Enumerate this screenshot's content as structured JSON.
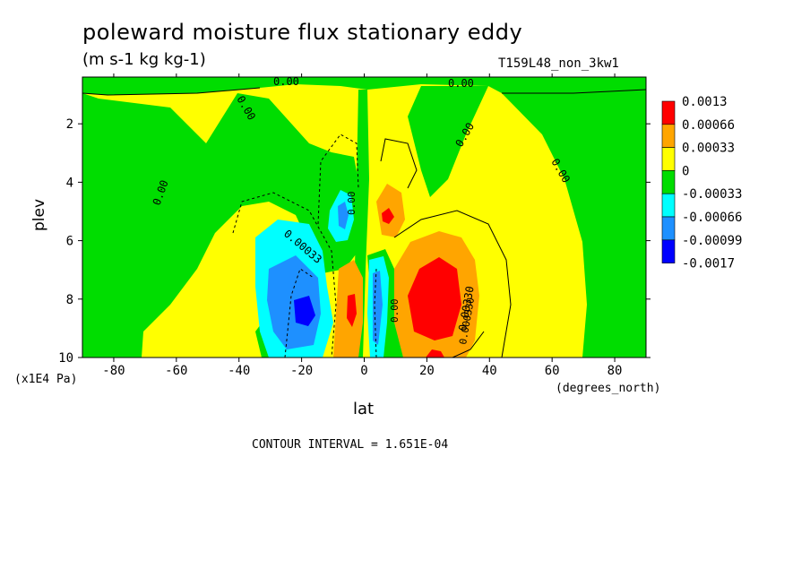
{
  "chart_data": {
    "type": "heatmap",
    "title": "poleward moisture flux stationary eddy",
    "subtitle": "(m s-1 kg kg-1)",
    "run_label": "T159L48_non_3kw1",
    "xlabel": "lat",
    "ylabel": "plev",
    "x_units": "(degrees_north)",
    "y_units": "(x1E4 Pa)",
    "xlim": [
      -90,
      90
    ],
    "ylim": [
      10,
      0.4
    ],
    "x_ticks": [
      -80,
      -60,
      -40,
      -20,
      0,
      20,
      40,
      60,
      80
    ],
    "y_ticks": [
      2,
      4,
      6,
      8,
      10
    ],
    "contour_interval_text": "CONTOUR INTERVAL = 1.651E-04",
    "colorbar": {
      "labels": [
        "0.0013",
        "0.00066",
        "0.00033",
        "0",
        "-0.00033",
        "-0.00066",
        "-0.00099",
        "-0.0017"
      ],
      "colors": [
        "#ff0000",
        "#ffa500",
        "#ffff00",
        "#00dd00",
        "#00ffff",
        "#1e90ff",
        "#0000ff"
      ]
    },
    "contour_labels": [
      "0.00",
      "0.00",
      "0.00",
      "0.00",
      "0.00",
      "0.00",
      "0.00033",
      "0.00330",
      "0.000330",
      "0.00",
      "0.00"
    ]
  }
}
